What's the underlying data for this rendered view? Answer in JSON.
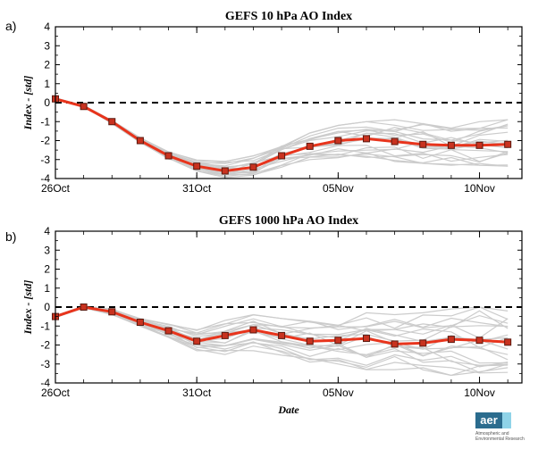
{
  "chart_data": [
    {
      "type": "line",
      "panel_label": "a)",
      "title": "GEFS 10 hPa AO Index",
      "ylabel": "Index - [std]",
      "xlabel": "",
      "ylim": [
        -4,
        4
      ],
      "yticks": [
        4,
        3,
        2,
        1,
        0,
        -1,
        -2,
        -3,
        -4
      ],
      "xlim": [
        0,
        16.5
      ],
      "xticks": [
        {
          "x": 0,
          "label": "26Oct"
        },
        {
          "x": 5,
          "label": "31Oct"
        },
        {
          "x": 10,
          "label": "05Nov"
        },
        {
          "x": 15,
          "label": "10Nov"
        }
      ],
      "zero_line": 0,
      "mean": {
        "x": [
          0,
          1,
          2,
          3,
          4,
          5,
          6,
          7,
          8,
          9,
          10,
          11,
          12,
          13,
          14,
          15,
          16
        ],
        "values": [
          0.2,
          -0.2,
          -1.0,
          -2.0,
          -2.8,
          -3.35,
          -3.6,
          -3.4,
          -2.8,
          -2.3,
          -2.0,
          -1.9,
          -2.05,
          -2.2,
          -2.25,
          -2.25,
          -2.2
        ],
        "color": "#e8341c"
      },
      "ensemble_color": "#cccccc",
      "ensemble_spread": {
        "min": [
          0.2,
          -0.2,
          -1.1,
          -2.1,
          -3.0,
          -3.6,
          -3.95,
          -3.85,
          -3.4,
          -3.0,
          -2.9,
          -3.0,
          -3.1,
          -3.2,
          -3.3,
          -3.3,
          -3.35
        ],
        "max": [
          0.25,
          -0.15,
          -0.9,
          -1.85,
          -2.55,
          -3.0,
          -3.1,
          -2.8,
          -2.1,
          -1.6,
          -1.2,
          -1.0,
          -0.9,
          -1.1,
          -1.2,
          -1.0,
          -0.9
        ]
      }
    },
    {
      "type": "line",
      "panel_label": "b)",
      "title": "GEFS 1000 hPa AO Index",
      "ylabel": "Index - [std]",
      "xlabel": "Date",
      "ylim": [
        -4,
        4
      ],
      "yticks": [
        4,
        3,
        2,
        1,
        0,
        -1,
        -2,
        -3,
        -4
      ],
      "xlim": [
        0,
        16.5
      ],
      "xticks": [
        {
          "x": 0,
          "label": "26Oct"
        },
        {
          "x": 5,
          "label": "31Oct"
        },
        {
          "x": 10,
          "label": "05Nov"
        },
        {
          "x": 15,
          "label": "10Nov"
        }
      ],
      "zero_line": 0,
      "mean": {
        "x": [
          0,
          1,
          2,
          3,
          4,
          5,
          6,
          7,
          8,
          9,
          10,
          11,
          12,
          13,
          14,
          15,
          16
        ],
        "values": [
          -0.5,
          0.0,
          -0.25,
          -0.8,
          -1.25,
          -1.8,
          -1.5,
          -1.2,
          -1.5,
          -1.8,
          -1.75,
          -1.65,
          -1.95,
          -1.9,
          -1.7,
          -1.75,
          -1.85
        ],
        "color": "#e8341c"
      },
      "ensemble_color": "#cccccc",
      "ensemble_spread": {
        "min": [
          -0.55,
          -0.05,
          -0.4,
          -1.0,
          -1.6,
          -2.3,
          -2.5,
          -2.3,
          -2.6,
          -2.9,
          -3.0,
          -3.3,
          -3.3,
          -3.4,
          -3.6,
          -3.8,
          -3.7
        ],
        "max": [
          -0.45,
          0.05,
          -0.1,
          -0.6,
          -0.9,
          -1.2,
          -0.7,
          -0.4,
          -0.6,
          -0.7,
          -0.5,
          -0.3,
          -0.4,
          -0.3,
          -0.1,
          0.0,
          -0.2
        ]
      }
    }
  ],
  "logo": {
    "mark": "aer",
    "line1": "Atmospheric and",
    "line2": "Environmental Research"
  }
}
